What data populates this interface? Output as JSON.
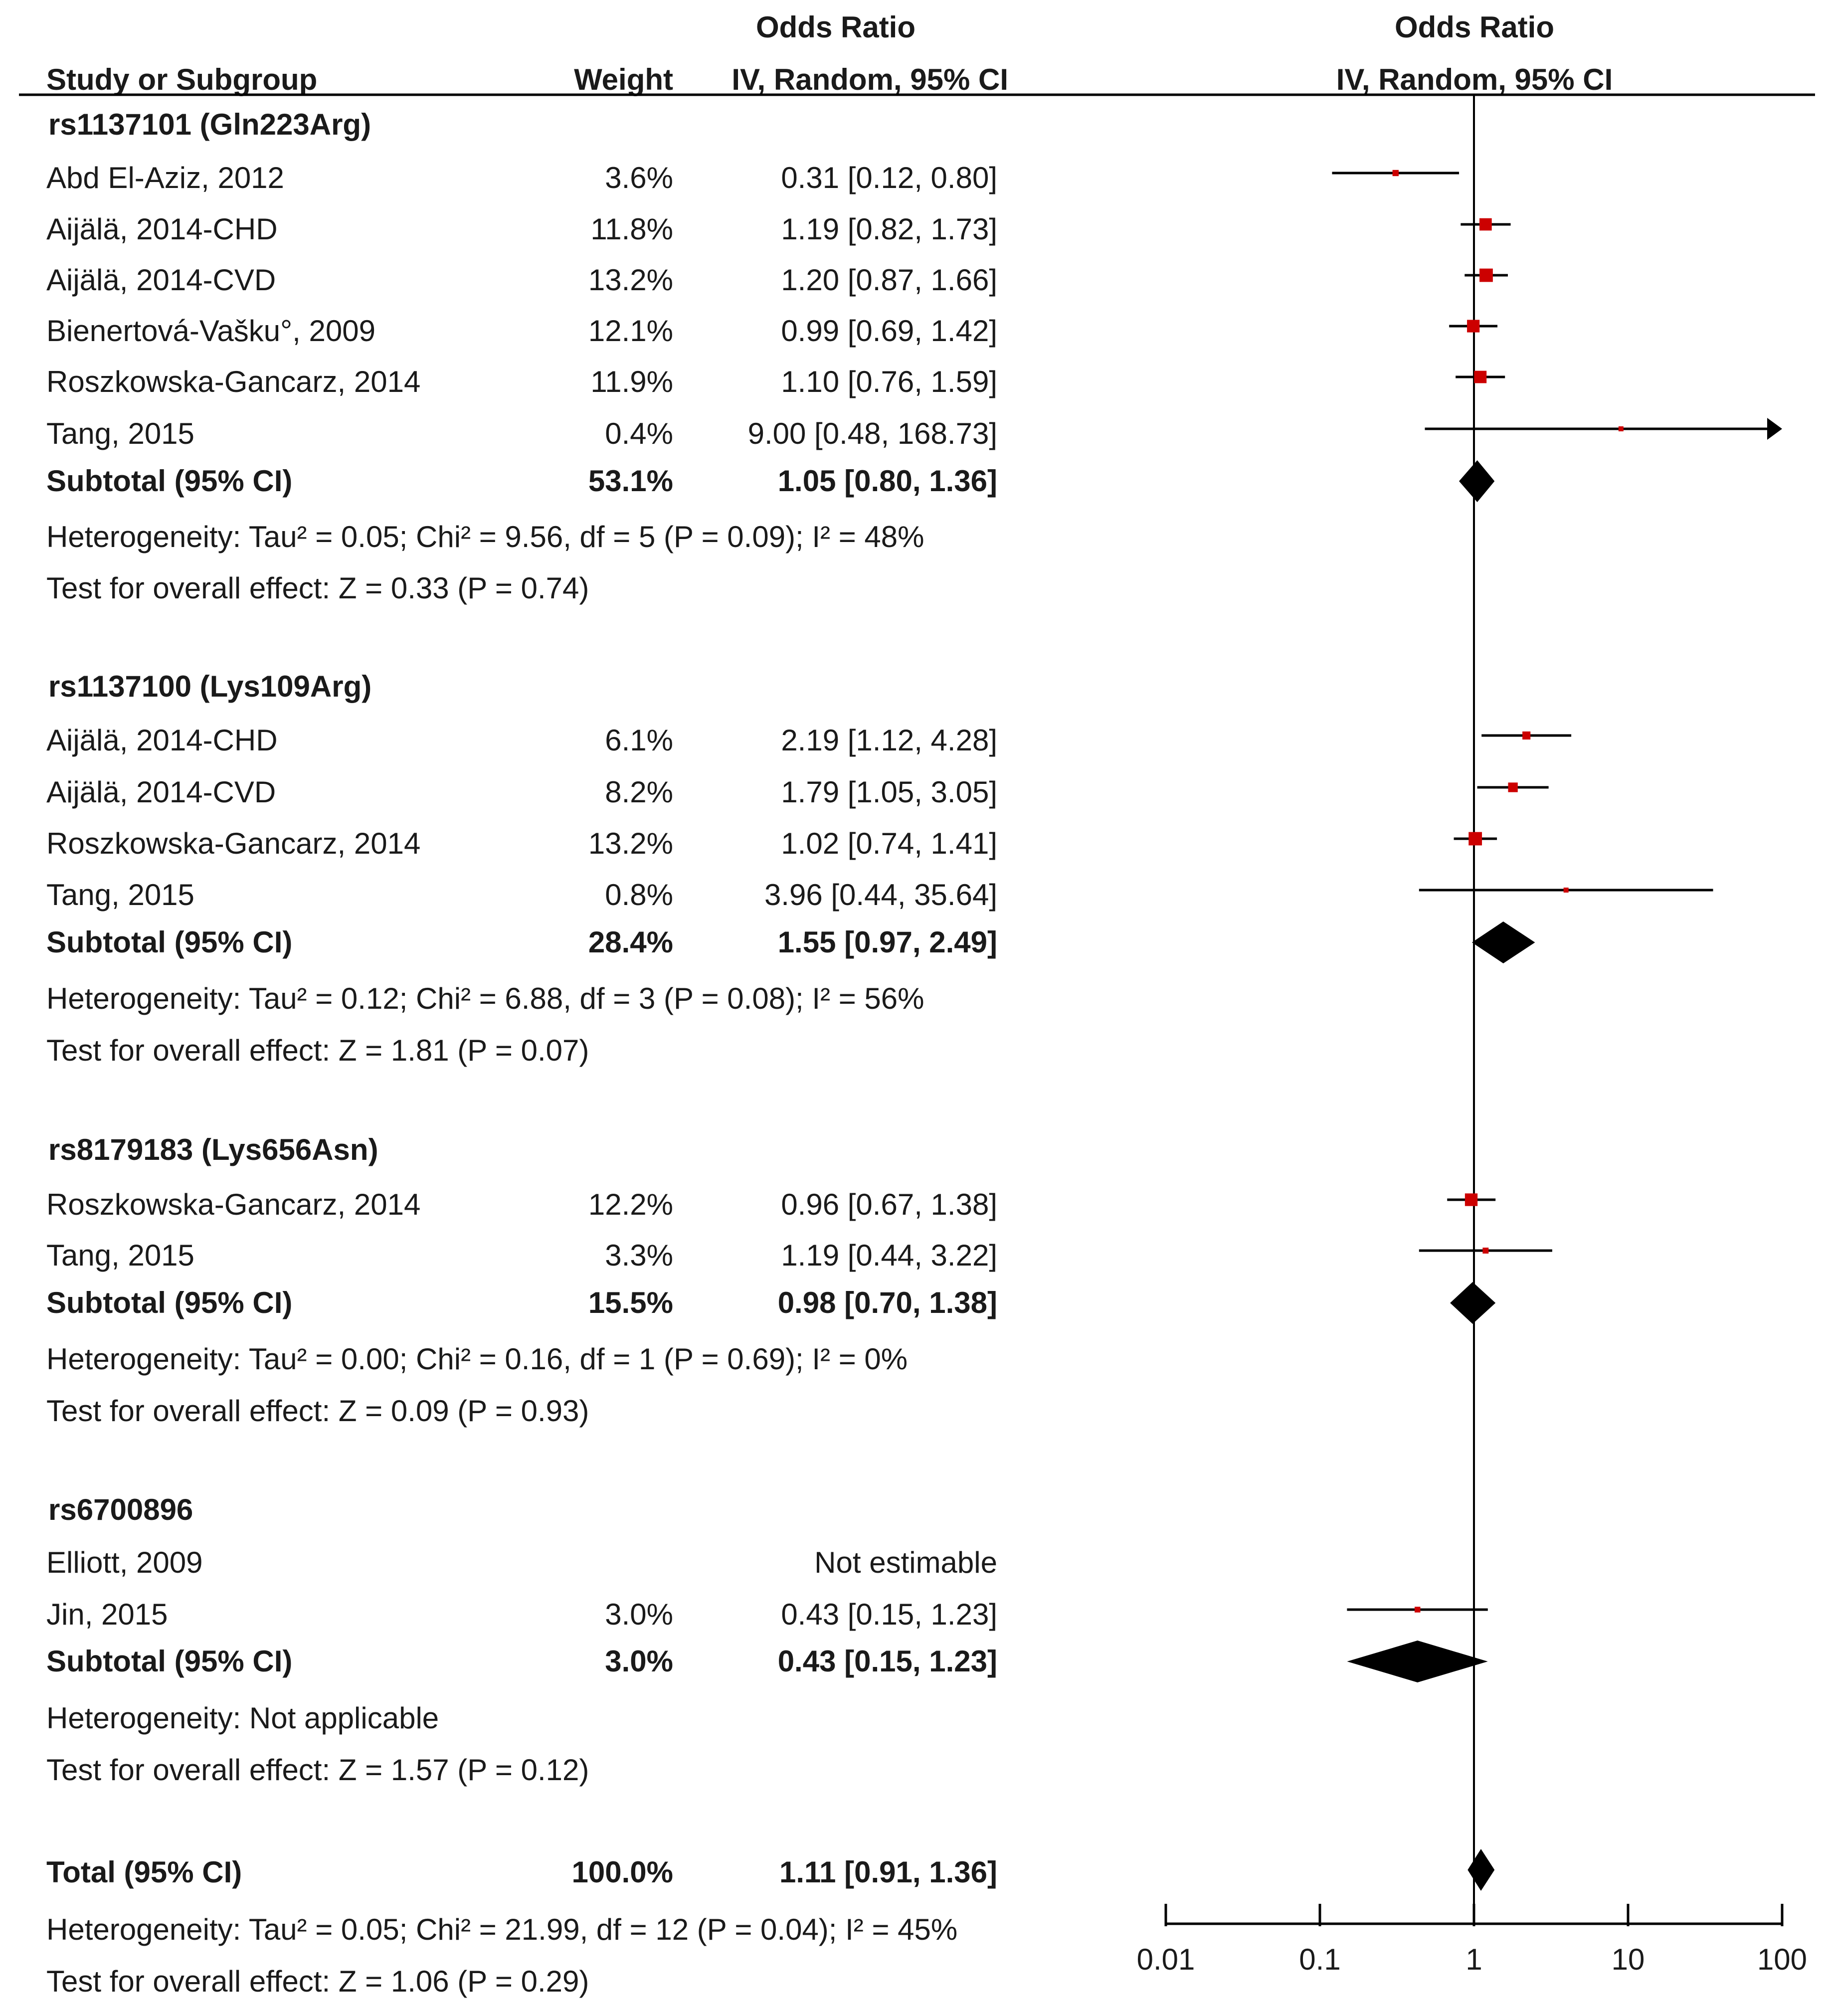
{
  "chart_data": {
    "type": "forest",
    "header": {
      "col_study": "Study or Subgroup",
      "col_weight": "Weight",
      "col_ci_title": "Odds Ratio",
      "col_ci_sub": "IV, Random, 95% CI",
      "plot_title": "Odds Ratio",
      "plot_sub": "IV, Random, 95% CI"
    },
    "x_scale": "log",
    "x_range": [
      0.01,
      100
    ],
    "x_ticks": [
      "0.01",
      "0.1",
      "1",
      "10",
      "100"
    ],
    "x_tick_values": [
      0.01,
      0.1,
      1,
      10,
      100
    ],
    "null_line": 1,
    "marker_color": "#cc0000",
    "diamond_color": "#000000",
    "subgroups": [
      {
        "name": "rs1137101 (Gln223Arg)",
        "studies": [
          {
            "study": "Abd El-Aziz, 2012",
            "weight": "3.6%",
            "ci_text": "0.31 [0.12, 0.80]",
            "or": 0.31,
            "lo": 0.12,
            "hi": 0.8
          },
          {
            "study": "Aijälä, 2014-CHD",
            "weight": "11.8%",
            "ci_text": "1.19 [0.82, 1.73]",
            "or": 1.19,
            "lo": 0.82,
            "hi": 1.73
          },
          {
            "study": "Aijälä, 2014-CVD",
            "weight": "13.2%",
            "ci_text": "1.20 [0.87, 1.66]",
            "or": 1.2,
            "lo": 0.87,
            "hi": 1.66
          },
          {
            "study": "Bienertová-Vašku°, 2009",
            "weight": "12.1%",
            "ci_text": "0.99 [0.69, 1.42]",
            "or": 0.99,
            "lo": 0.69,
            "hi": 1.42
          },
          {
            "study": "Roszkowska-Gancarz, 2014",
            "weight": "11.9%",
            "ci_text": "1.10 [0.76, 1.59]",
            "or": 1.1,
            "lo": 0.76,
            "hi": 1.59
          },
          {
            "study": "Tang, 2015",
            "weight": "0.4%",
            "ci_text": "9.00 [0.48, 168.73]",
            "or": 9.0,
            "lo": 0.48,
            "hi": 168.73
          }
        ],
        "subtotal": {
          "label": "Subtotal (95% CI)",
          "weight": "53.1%",
          "ci_text": "1.05 [0.80, 1.36]",
          "or": 1.05,
          "lo": 0.8,
          "hi": 1.36
        },
        "heterogeneity": "Heterogeneity: Tau² = 0.05; Chi² = 9.56, df = 5 (P = 0.09); I² = 48%",
        "overall": "Test for overall effect: Z = 0.33 (P = 0.74)"
      },
      {
        "name": "rs1137100 (Lys109Arg)",
        "studies": [
          {
            "study": "Aijälä, 2014-CHD",
            "weight": "6.1%",
            "ci_text": "2.19 [1.12, 4.28]",
            "or": 2.19,
            "lo": 1.12,
            "hi": 4.28
          },
          {
            "study": "Aijälä, 2014-CVD",
            "weight": "8.2%",
            "ci_text": "1.79 [1.05, 3.05]",
            "or": 1.79,
            "lo": 1.05,
            "hi": 3.05
          },
          {
            "study": "Roszkowska-Gancarz, 2014",
            "weight": "13.2%",
            "ci_text": "1.02 [0.74, 1.41]",
            "or": 1.02,
            "lo": 0.74,
            "hi": 1.41
          },
          {
            "study": "Tang, 2015",
            "weight": "0.8%",
            "ci_text": "3.96 [0.44, 35.64]",
            "or": 3.96,
            "lo": 0.44,
            "hi": 35.64
          }
        ],
        "subtotal": {
          "label": "Subtotal (95% CI)",
          "weight": "28.4%",
          "ci_text": "1.55 [0.97, 2.49]",
          "or": 1.55,
          "lo": 0.97,
          "hi": 2.49
        },
        "heterogeneity": "Heterogeneity: Tau² = 0.12; Chi² = 6.88, df = 3 (P = 0.08); I² = 56%",
        "overall": "Test for overall effect: Z = 1.81 (P = 0.07)"
      },
      {
        "name": "rs8179183 (Lys656Asn)",
        "studies": [
          {
            "study": "Roszkowska-Gancarz, 2014",
            "weight": "12.2%",
            "ci_text": "0.96 [0.67, 1.38]",
            "or": 0.96,
            "lo": 0.67,
            "hi": 1.38
          },
          {
            "study": "Tang, 2015",
            "weight": "3.3%",
            "ci_text": "1.19 [0.44, 3.22]",
            "or": 1.19,
            "lo": 0.44,
            "hi": 3.22
          }
        ],
        "subtotal": {
          "label": "Subtotal (95% CI)",
          "weight": "15.5%",
          "ci_text": "0.98 [0.70, 1.38]",
          "or": 0.98,
          "lo": 0.7,
          "hi": 1.38
        },
        "heterogeneity": "Heterogeneity: Tau² = 0.00; Chi² = 0.16, df = 1 (P = 0.69); I² = 0%",
        "overall": "Test for overall effect: Z = 0.09 (P = 0.93)"
      },
      {
        "name": "rs6700896",
        "studies": [
          {
            "study": "Elliott, 2009",
            "weight": "",
            "ci_text": "Not estimable",
            "or": null,
            "lo": null,
            "hi": null
          },
          {
            "study": "Jin, 2015",
            "weight": "3.0%",
            "ci_text": "0.43 [0.15, 1.23]",
            "or": 0.43,
            "lo": 0.15,
            "hi": 1.23
          }
        ],
        "subtotal": {
          "label": "Subtotal (95% CI)",
          "weight": "3.0%",
          "ci_text": "0.43 [0.15, 1.23]",
          "or": 0.43,
          "lo": 0.15,
          "hi": 1.23
        },
        "heterogeneity": "Heterogeneity: Not applicable",
        "overall": "Test for overall effect: Z = 1.57 (P = 0.12)"
      }
    ],
    "total": {
      "label": "Total (95% CI)",
      "weight": "100.0%",
      "ci_text": "1.11 [0.91, 1.36]",
      "or": 1.11,
      "lo": 0.91,
      "hi": 1.36,
      "heterogeneity": "Heterogeneity: Tau² = 0.05; Chi² = 21.99, df = 12 (P = 0.04); I² = 45%",
      "overall": "Test for overall effect: Z = 1.06 (P = 0.29)"
    }
  }
}
